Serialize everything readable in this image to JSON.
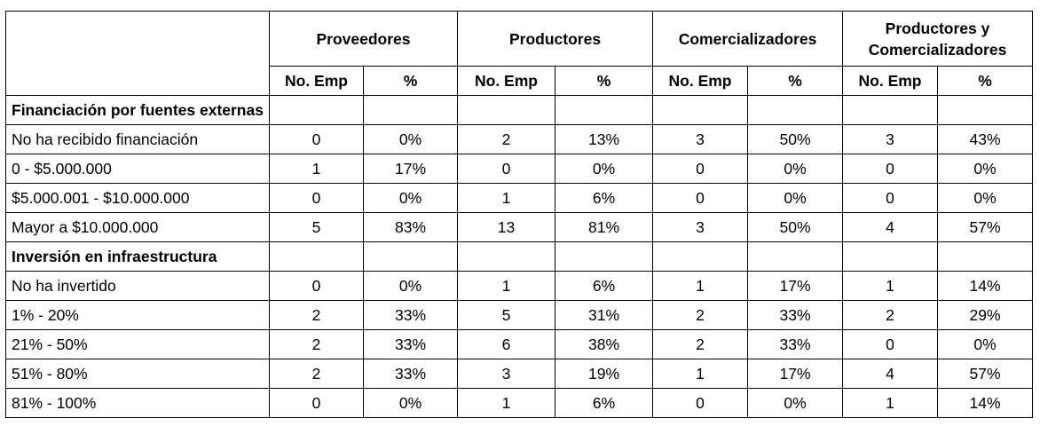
{
  "groups": [
    {
      "name": "Proveedores"
    },
    {
      "name": "Productores"
    },
    {
      "name": "Comercializadores"
    },
    {
      "name": "Productores y Comercializadores"
    }
  ],
  "subheaders": {
    "count": "No. Emp",
    "pct": "%"
  },
  "sections": [
    {
      "title": "Financiación por fuentes externas",
      "rows": [
        {
          "label": "No ha recibido financiación",
          "cells": [
            "0",
            "0%",
            "2",
            "13%",
            "3",
            "50%",
            "3",
            "43%"
          ]
        },
        {
          "label": "0 - $5.000.000",
          "cells": [
            "1",
            "17%",
            "0",
            "0%",
            "0",
            "0%",
            "0",
            "0%"
          ]
        },
        {
          "label": "$5.000.001 - $10.000.000",
          "cells": [
            "0",
            "0%",
            "1",
            "6%",
            "0",
            "0%",
            "0",
            "0%"
          ]
        },
        {
          "label": "Mayor a $10.000.000",
          "cells": [
            "5",
            "83%",
            "13",
            "81%",
            "3",
            "50%",
            "4",
            "57%"
          ]
        }
      ]
    },
    {
      "title": "Inversión en infraestructura",
      "rows": [
        {
          "label": "No ha invertido",
          "cells": [
            "0",
            "0%",
            "1",
            "6%",
            "1",
            "17%",
            "1",
            "14%"
          ]
        },
        {
          "label": "1% - 20%",
          "cells": [
            "2",
            "33%",
            "5",
            "31%",
            "2",
            "33%",
            "2",
            "29%"
          ]
        },
        {
          "label": "21% - 50%",
          "cells": [
            "2",
            "33%",
            "6",
            "38%",
            "2",
            "33%",
            "0",
            "0%"
          ]
        },
        {
          "label": "51% - 80%",
          "cells": [
            "2",
            "33%",
            "3",
            "19%",
            "1",
            "17%",
            "4",
            "57%"
          ]
        },
        {
          "label": "81% - 100%",
          "cells": [
            "0",
            "0%",
            "1",
            "6%",
            "0",
            "0%",
            "1",
            "14%"
          ]
        }
      ]
    }
  ]
}
